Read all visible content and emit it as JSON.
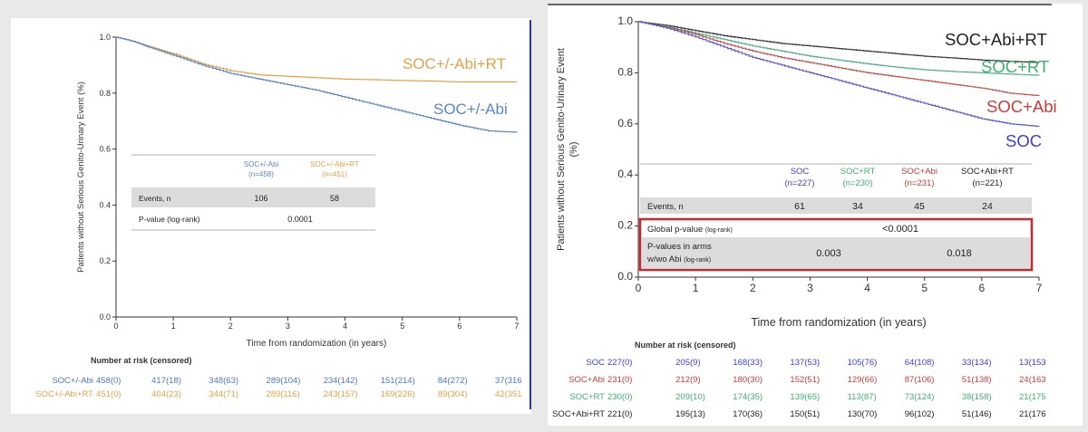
{
  "chart_data": [
    {
      "type": "line",
      "title": "",
      "xlabel": "Time from randomization (in years)",
      "ylabel": "Patients without Serious Genito-Urinary Event (%)",
      "xlim": [
        0,
        7
      ],
      "ylim": [
        0.0,
        1.0
      ],
      "x_ticks": [
        "0",
        "1",
        "2",
        "3",
        "4",
        "5",
        "6",
        "7"
      ],
      "y_ticks": [
        "0.0",
        "0.2",
        "0.4",
        "0.6",
        "0.8",
        "1.0"
      ],
      "series": [
        {
          "name": "SOC+/-Abi+RT",
          "color": "#e3a24a",
          "points": [
            [
              0,
              1.0
            ],
            [
              0.3,
              0.985
            ],
            [
              0.6,
              0.965
            ],
            [
              1,
              0.94
            ],
            [
              1.5,
              0.905
            ],
            [
              2,
              0.88
            ],
            [
              2.5,
              0.865
            ],
            [
              3,
              0.86
            ],
            [
              3.5,
              0.855
            ],
            [
              4,
              0.85
            ],
            [
              4.5,
              0.848
            ],
            [
              5,
              0.845
            ],
            [
              5.5,
              0.843
            ],
            [
              6,
              0.84
            ],
            [
              7,
              0.84
            ]
          ]
        },
        {
          "name": "SOC+/-Abi",
          "color": "#5b86c2",
          "points": [
            [
              0,
              1.0
            ],
            [
              0.3,
              0.985
            ],
            [
              0.6,
              0.962
            ],
            [
              1,
              0.935
            ],
            [
              1.5,
              0.9
            ],
            [
              2,
              0.87
            ],
            [
              2.5,
              0.85
            ],
            [
              3,
              0.83
            ],
            [
              3.5,
              0.81
            ],
            [
              4,
              0.785
            ],
            [
              4.5,
              0.76
            ],
            [
              5,
              0.735
            ],
            [
              5.5,
              0.71
            ],
            [
              6,
              0.685
            ],
            [
              6.5,
              0.665
            ],
            [
              7,
              0.66
            ]
          ]
        }
      ],
      "table": {
        "headers": [
          {
            "name": "SOC+/-Abi",
            "n": "(n=458)"
          },
          {
            "name": "SOC+/-Abi+RT",
            "n": "(n=451)"
          }
        ],
        "events_label": "Events, n",
        "events": [
          "106",
          "58"
        ],
        "pvalue_label": "P-value (log-rank)",
        "pvalue": "0.0001"
      },
      "risk": {
        "title": "Number at risk (censored)",
        "rows": [
          {
            "label": "SOC+/-Abi",
            "color": "#4a7ac0",
            "values": [
              "458(0)",
              "417(18)",
              "348(63)",
              "289(104)",
              "234(142)",
              "151(214)",
              "84(272)",
              "37(316"
            ]
          },
          {
            "label": "SOC+/-Abi+RT",
            "color": "#e3a24a",
            "values": [
              "451(0)",
              "404(23)",
              "344(71)",
              "289(116)",
              "243(157)",
              "169(226)",
              "89(304)",
              "42(351"
            ]
          }
        ]
      }
    },
    {
      "type": "line",
      "title": "",
      "xlabel": "Time from randomization (in years)",
      "ylabel": "Patients without Serious Genito-Urinary Event (%)",
      "xlim": [
        0,
        7
      ],
      "ylim": [
        0.0,
        1.0
      ],
      "x_ticks": [
        "0",
        "1",
        "2",
        "3",
        "4",
        "5",
        "6",
        "7"
      ],
      "y_ticks": [
        "0.0",
        "0.2",
        "0.4",
        "0.6",
        "0.8",
        "1.0"
      ],
      "series": [
        {
          "name": "SOC+Abi+RT",
          "color": "#333333",
          "label_color": "#222222",
          "points": [
            [
              0,
              1.0
            ],
            [
              0.5,
              0.985
            ],
            [
              1,
              0.965
            ],
            [
              1.5,
              0.945
            ],
            [
              2,
              0.93
            ],
            [
              2.5,
              0.915
            ],
            [
              3,
              0.905
            ],
            [
              3.5,
              0.895
            ],
            [
              4,
              0.885
            ],
            [
              4.5,
              0.875
            ],
            [
              5,
              0.865
            ],
            [
              5.5,
              0.858
            ],
            [
              6,
              0.85
            ],
            [
              6.5,
              0.845
            ],
            [
              7,
              0.84
            ]
          ]
        },
        {
          "name": "SOC+RT",
          "color": "#4fae8a",
          "label_color": "#3fb06f",
          "points": [
            [
              0,
              1.0
            ],
            [
              0.5,
              0.98
            ],
            [
              1,
              0.955
            ],
            [
              1.5,
              0.93
            ],
            [
              2,
              0.905
            ],
            [
              2.5,
              0.885
            ],
            [
              3,
              0.865
            ],
            [
              3.5,
              0.85
            ],
            [
              4,
              0.835
            ],
            [
              4.5,
              0.822
            ],
            [
              5,
              0.812
            ],
            [
              5.5,
              0.805
            ],
            [
              6,
              0.8
            ],
            [
              6.5,
              0.795
            ],
            [
              7,
              0.79
            ]
          ]
        },
        {
          "name": "SOC+Abi",
          "color": "#c0504d",
          "label_color": "#cc3b3b",
          "points": [
            [
              0,
              1.0
            ],
            [
              0.5,
              0.978
            ],
            [
              1,
              0.95
            ],
            [
              1.5,
              0.915
            ],
            [
              2,
              0.885
            ],
            [
              2.5,
              0.86
            ],
            [
              3,
              0.84
            ],
            [
              3.5,
              0.82
            ],
            [
              4,
              0.8
            ],
            [
              4.5,
              0.785
            ],
            [
              5,
              0.77
            ],
            [
              5.5,
              0.755
            ],
            [
              6,
              0.74
            ],
            [
              6.5,
              0.72
            ],
            [
              7,
              0.71
            ]
          ]
        },
        {
          "name": "SOC",
          "color": "#5858c8",
          "label_color": "#3f3fcf",
          "points": [
            [
              0,
              1.0
            ],
            [
              0.5,
              0.975
            ],
            [
              1,
              0.94
            ],
            [
              1.5,
              0.9
            ],
            [
              2,
              0.86
            ],
            [
              2.5,
              0.83
            ],
            [
              3,
              0.8
            ],
            [
              3.5,
              0.77
            ],
            [
              4,
              0.74
            ],
            [
              4.5,
              0.71
            ],
            [
              5,
              0.68
            ],
            [
              5.5,
              0.65
            ],
            [
              6,
              0.62
            ],
            [
              6.5,
              0.6
            ],
            [
              7,
              0.59
            ]
          ]
        }
      ],
      "table": {
        "headers": [
          {
            "name": "SOC",
            "n": "(n=227)",
            "color": "#3f3fcf"
          },
          {
            "name": "SOC+RT",
            "n": "(n=230)",
            "color": "#3fb06f"
          },
          {
            "name": "SOC+Abi",
            "n": "(n=231)",
            "color": "#cc3b3b"
          },
          {
            "name": "SOC+Abi+RT",
            "n": "(n=221)",
            "color": "#222222"
          }
        ],
        "events_label": "Events, n",
        "events": [
          "61",
          "34",
          "45",
          "24"
        ],
        "global_label": "Global p-value",
        "global_label_small": "(log-rank)",
        "global_pvalue": "<0.0001",
        "arms_label_line1": "P-values in arms",
        "arms_label_line2": "w/wo Abi",
        "arms_label_small": "(log-rank)",
        "arms_pvalues": [
          "0.003",
          "0.018"
        ],
        "highlight_color": "#c8272d"
      },
      "risk": {
        "title": "Number at risk (censored)",
        "rows": [
          {
            "label": "SOC",
            "color": "#3f3fcf",
            "values": [
              "227(0)",
              "205(9)",
              "168(33)",
              "137(53)",
              "105(76)",
              "64(108)",
              "33(134)",
              "13(153"
            ]
          },
          {
            "label": "SOC+Abi",
            "color": "#cc3b3b",
            "values": [
              "231(0)",
              "212(9)",
              "180(30)",
              "152(51)",
              "129(66)",
              "87(106)",
              "51(138)",
              "24(163"
            ]
          },
          {
            "label": "SOC+RT",
            "color": "#3fb06f",
            "values": [
              "230(0)",
              "209(10)",
              "174(35)",
              "139(65)",
              "113(87)",
              "73(124)",
              "38(158)",
              "21(175"
            ]
          },
          {
            "label": "SOC+Abi+RT",
            "color": "#222222",
            "values": [
              "221(0)",
              "195(13)",
              "170(36)",
              "150(51)",
              "130(70)",
              "96(102)",
              "51(146)",
              "21(176"
            ]
          }
        ]
      }
    }
  ]
}
